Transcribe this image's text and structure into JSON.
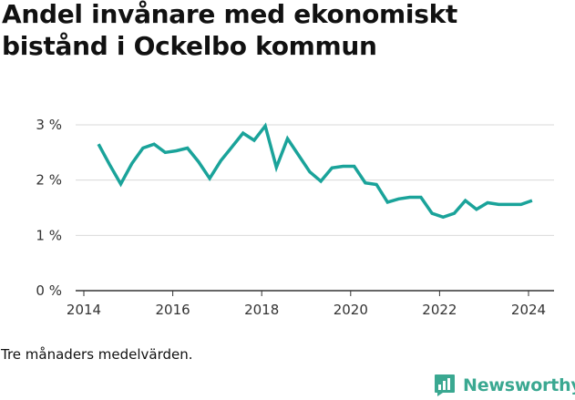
{
  "title_lines": [
    "Andel invånare med ekonomiskt",
    "bistånd i Ockelbo kommun"
  ],
  "note": "Tre månaders medelvärden.",
  "brand": {
    "name": "Newsworthy",
    "icon": "bar-chart-logo-icon",
    "color": "#3aa891"
  },
  "chart_data": {
    "type": "line",
    "title": "Andel invånare med ekonomiskt bistånd i Ockelbo kommun",
    "xlabel": "",
    "ylabel": "",
    "xlim": [
      2014,
      2025
    ],
    "ylim": [
      0,
      3
    ],
    "x_ticks": [
      2014,
      2016,
      2018,
      2020,
      2022,
      2024
    ],
    "x_tick_labels": [
      "2014",
      "2016",
      "2018",
      "2020",
      "2022",
      "2024"
    ],
    "y_ticks": [
      0,
      1,
      2,
      3
    ],
    "y_tick_labels": [
      "0 %",
      "1 %",
      "2 %",
      "3 %"
    ],
    "grid": true,
    "line_color": "#1aa39a",
    "series": [
      {
        "x": [
          2014.33,
          2014.58,
          2014.83,
          2015.08,
          2015.33,
          2015.58,
          2015.83,
          2016.08,
          2016.33,
          2016.58,
          2016.83,
          2017.08,
          2017.33,
          2017.58,
          2017.83,
          2018.08,
          2018.33,
          2018.58,
          2018.83,
          2019.08,
          2019.33,
          2019.58,
          2019.83,
          2020.08,
          2020.33,
          2020.58,
          2020.83,
          2021.08,
          2021.33,
          2021.58,
          2021.83,
          2022.08,
          2022.33,
          2022.58,
          2022.83,
          2023.08,
          2023.33,
          2023.58,
          2023.83,
          2024.08
        ],
        "y": [
          2.65,
          2.28,
          1.93,
          2.3,
          2.58,
          2.65,
          2.5,
          2.53,
          2.58,
          2.33,
          2.03,
          2.35,
          2.6,
          2.85,
          2.72,
          2.98,
          2.23,
          2.75,
          2.45,
          2.15,
          1.98,
          2.22,
          2.25,
          2.25,
          1.95,
          1.92,
          1.6,
          1.66,
          1.69,
          1.69,
          1.4,
          1.33,
          1.4,
          1.63,
          1.47,
          1.59,
          1.56,
          1.56,
          1.56,
          1.63
        ]
      }
    ]
  }
}
